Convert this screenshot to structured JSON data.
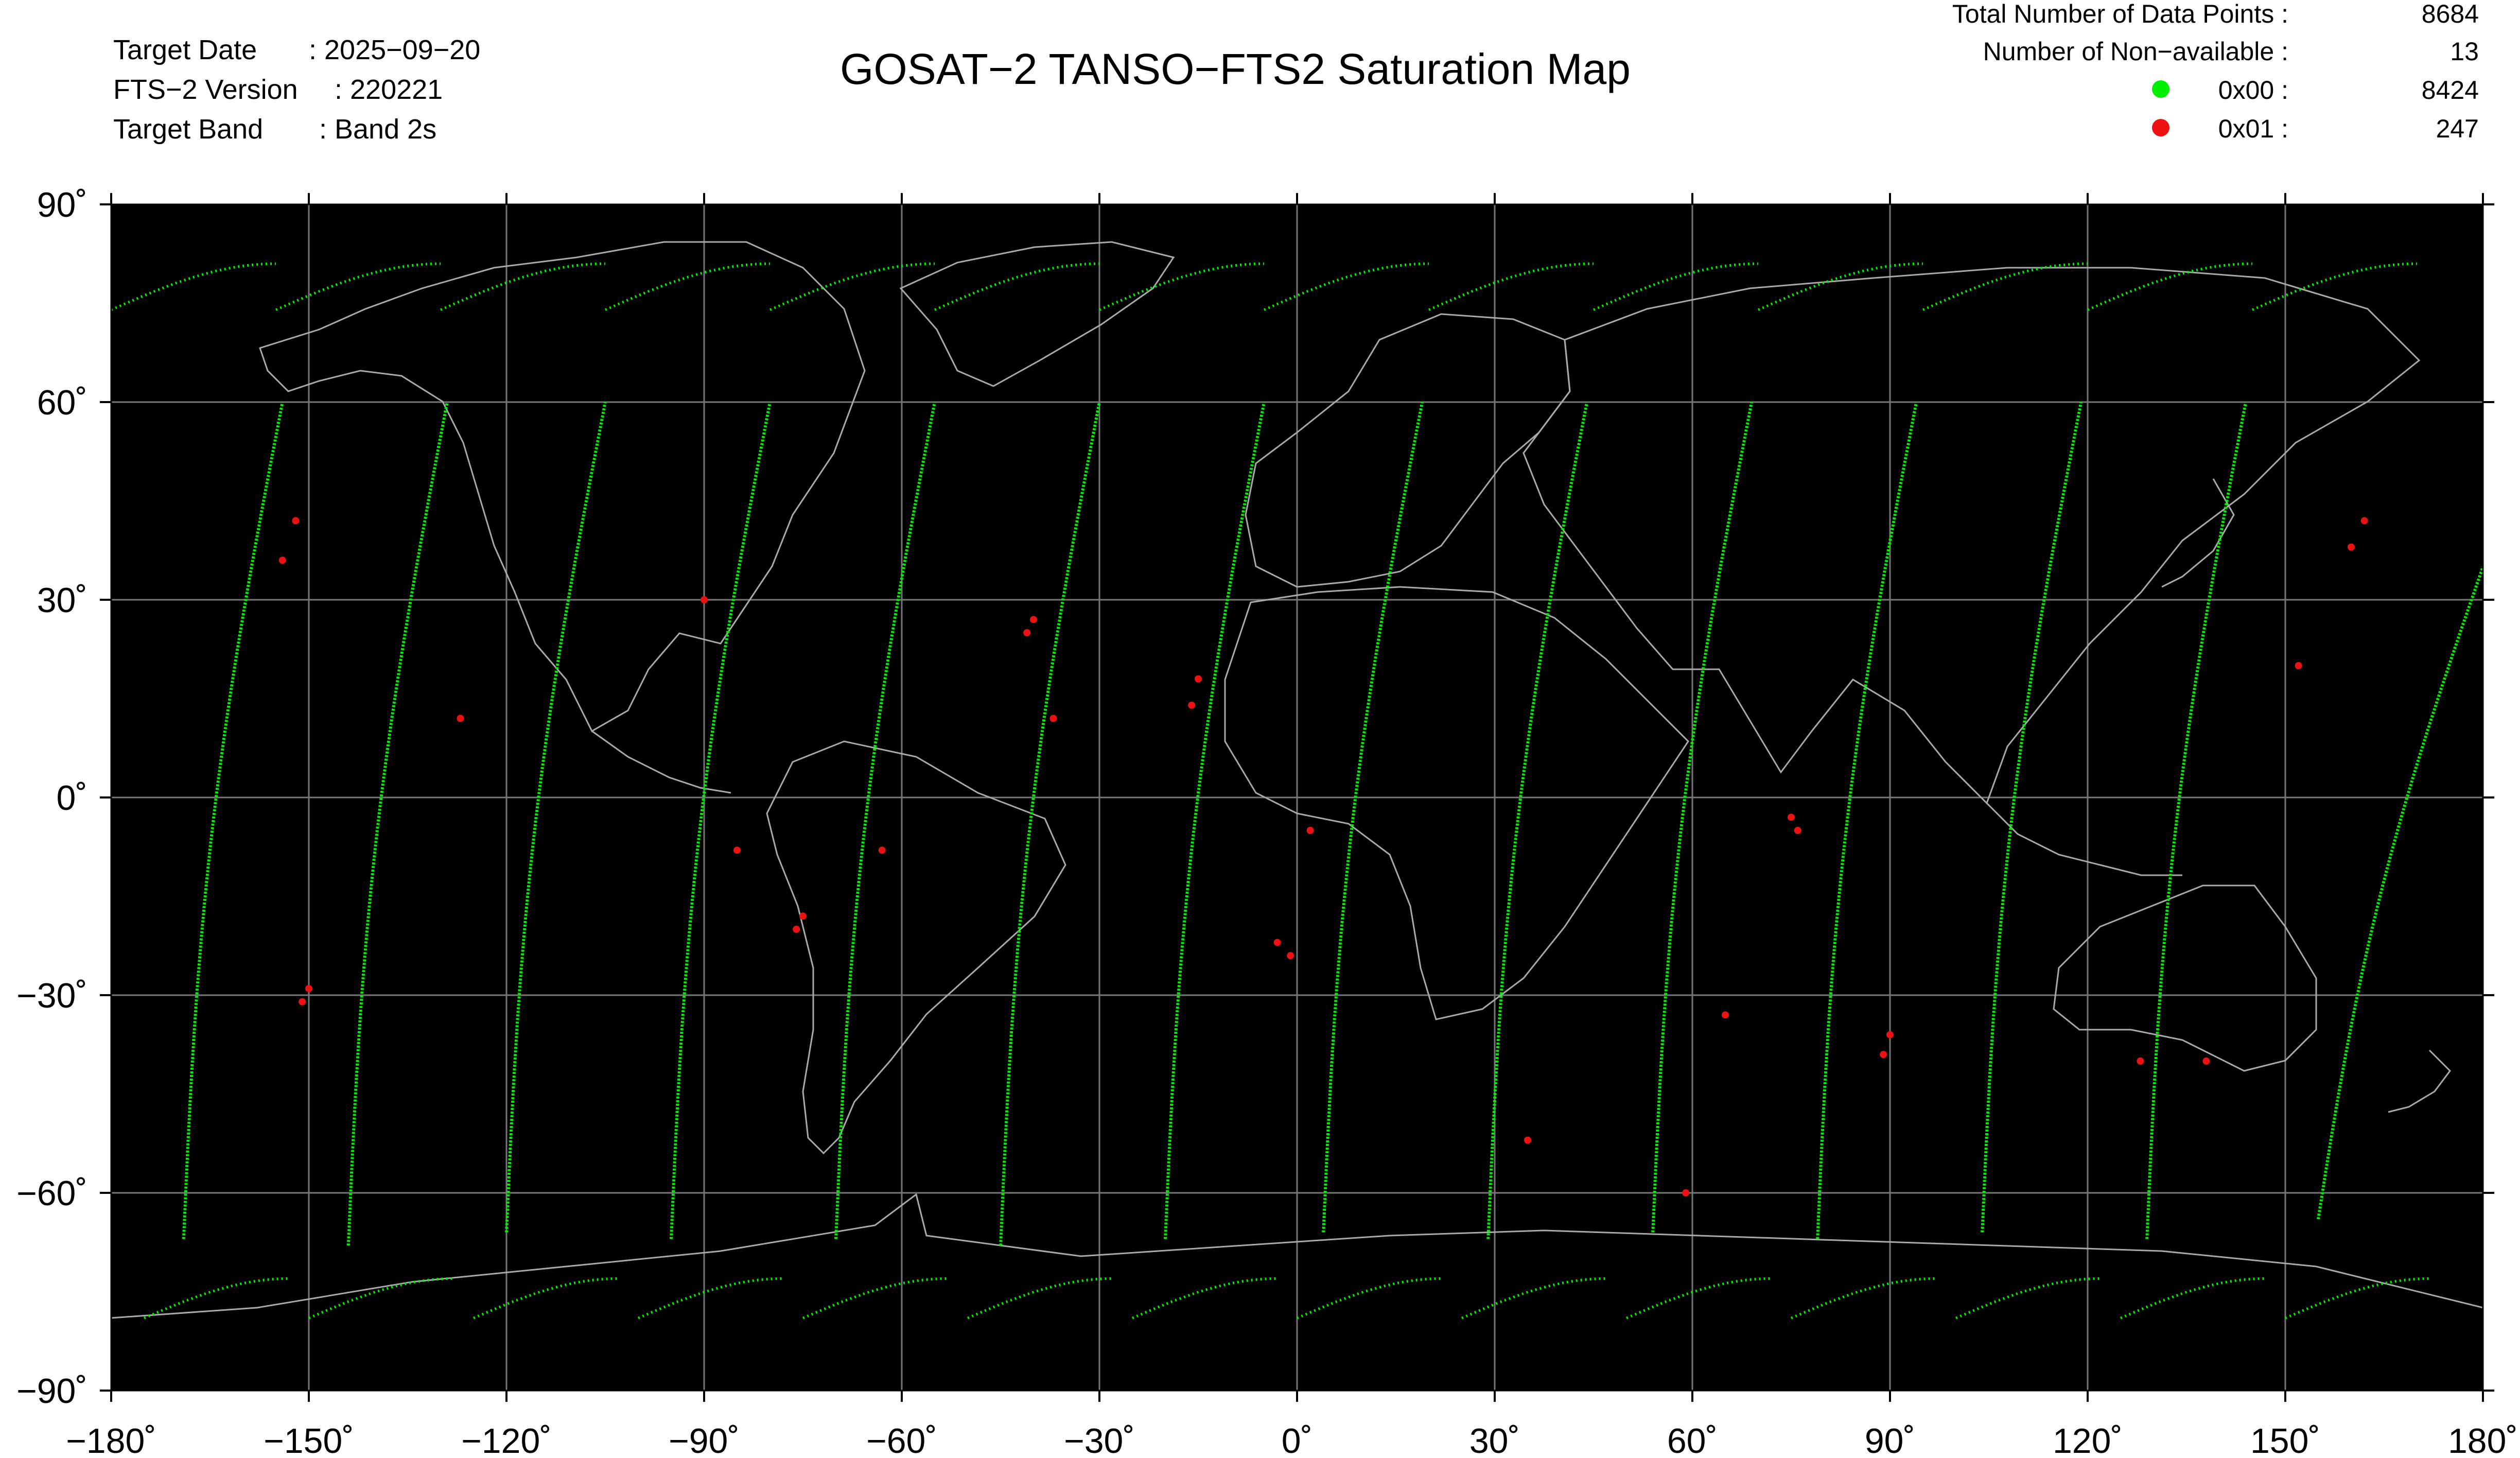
{
  "header": {
    "target_date_label": "Target Date",
    "target_date_value": ": 2025−09−20",
    "version_label": "FTS−2 Version",
    "version_value": ": 220221",
    "band_label": "Target Band",
    "band_value": ": Band 2s",
    "title": "GOSAT−2 TANSO−FTS2 Saturation Map"
  },
  "stats": {
    "total_label": "Total Number of Data Points :",
    "total_value": "8684",
    "nonavail_label": "Number of Non−available :",
    "nonavail_value": "13",
    "legend": [
      {
        "code": "0x00 :",
        "value": "8424",
        "color": "#00ee00"
      },
      {
        "code": "0x01 :",
        "value": "247",
        "color": "#ee1111"
      }
    ]
  },
  "map": {
    "background": "#000000",
    "grid_color": "#777777",
    "coast_color": "#aaaaaa",
    "x_ticks": [
      "−180˚",
      "−150˚",
      "−120˚",
      "−90˚",
      "−60˚",
      "−30˚",
      "0˚",
      "30˚",
      "60˚",
      "90˚",
      "120˚",
      "150˚",
      "180˚"
    ],
    "y_ticks": [
      "90˚",
      "60˚",
      "30˚",
      "0˚",
      "−30˚",
      "−60˚",
      "−90˚"
    ]
  },
  "chart_data": {
    "type": "scatter",
    "title": "GOSAT−2 TANSO−FTS2 Saturation Map",
    "xlim": [
      -180,
      180
    ],
    "ylim": [
      -90,
      90
    ],
    "grid": true,
    "series": [
      {
        "name": "0x00",
        "color": "#00ee00",
        "count": 8424
      },
      {
        "name": "0x01",
        "color": "#ee1111",
        "count": 247
      }
    ],
    "swath_tracks": [
      {
        "start": [
          -169,
          -67
        ],
        "end": [
          -154,
          60
        ]
      },
      {
        "start": [
          -144,
          -68
        ],
        "end": [
          -129,
          60
        ]
      },
      {
        "start": [
          -120,
          -66
        ],
        "end": [
          -105,
          60
        ]
      },
      {
        "start": [
          -95,
          -67
        ],
        "end": [
          -80,
          60
        ]
      },
      {
        "start": [
          -70,
          -67
        ],
        "end": [
          -55,
          60
        ]
      },
      {
        "start": [
          -45,
          -68
        ],
        "end": [
          -30,
          60
        ]
      },
      {
        "start": [
          -20,
          -67
        ],
        "end": [
          -5,
          60
        ]
      },
      {
        "start": [
          4,
          -66
        ],
        "end": [
          19,
          60
        ]
      },
      {
        "start": [
          29,
          -67
        ],
        "end": [
          44,
          60
        ]
      },
      {
        "start": [
          54,
          -66
        ],
        "end": [
          69,
          60
        ]
      },
      {
        "start": [
          79,
          -67
        ],
        "end": [
          94,
          60
        ]
      },
      {
        "start": [
          104,
          -66
        ],
        "end": [
          119,
          60
        ]
      },
      {
        "start": [
          129,
          -67
        ],
        "end": [
          144,
          60
        ]
      },
      {
        "start": [
          155,
          -64
        ],
        "end": [
          180,
          35
        ]
      }
    ],
    "saturated_points": [
      [
        -152,
        42
      ],
      [
        -154,
        36
      ],
      [
        -150,
        -29
      ],
      [
        -151,
        -31
      ],
      [
        -127,
        12
      ],
      [
        -90,
        30
      ],
      [
        -85,
        -8
      ],
      [
        -75,
        -18
      ],
      [
        -76,
        -20
      ],
      [
        -63,
        -8
      ],
      [
        -40,
        27
      ],
      [
        -41,
        25
      ],
      [
        -37,
        12
      ],
      [
        -15,
        18
      ],
      [
        -16,
        14
      ],
      [
        2,
        -5
      ],
      [
        -3,
        -22
      ],
      [
        -1,
        -24
      ],
      [
        35,
        -52
      ],
      [
        59,
        -60
      ],
      [
        65,
        -33
      ],
      [
        75,
        -3
      ],
      [
        76,
        -5
      ],
      [
        90,
        -36
      ],
      [
        89,
        -39
      ],
      [
        128,
        -40
      ],
      [
        138,
        -40
      ],
      [
        152,
        20
      ],
      [
        160,
        38
      ],
      [
        162,
        42
      ]
    ]
  }
}
